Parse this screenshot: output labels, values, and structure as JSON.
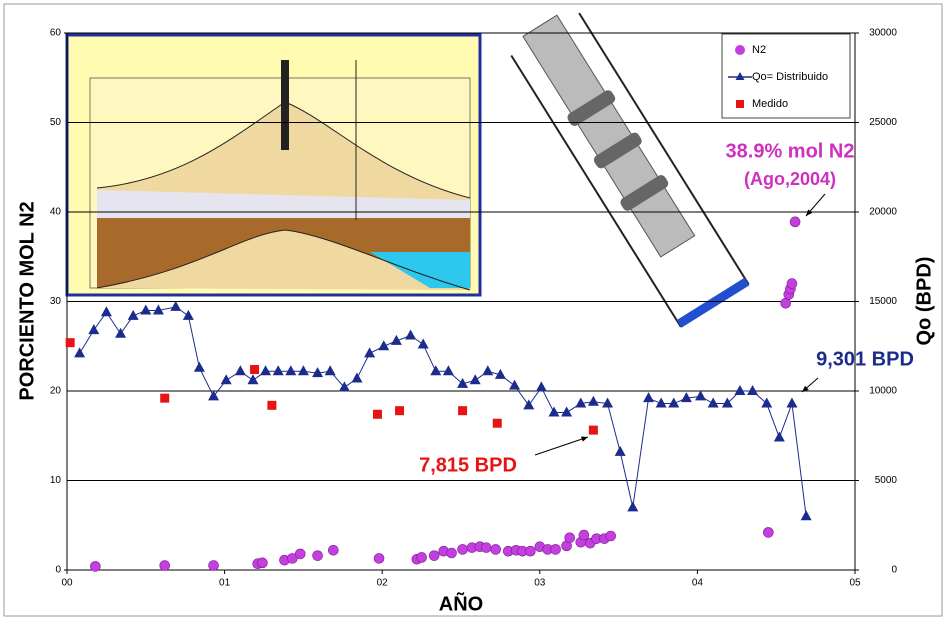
{
  "chart_data": {
    "type": "mixed",
    "xlabel": "AÑO",
    "ylabel": "PORCIENTO MOL N2",
    "y2label": "Qo (BPD)",
    "xlim": [
      0,
      5
    ],
    "xticks": [
      {
        "value": 0,
        "label": "00"
      },
      {
        "value": 1,
        "label": "01"
      },
      {
        "value": 2,
        "label": "02"
      },
      {
        "value": 3,
        "label": "03"
      },
      {
        "value": 4,
        "label": "04"
      },
      {
        "value": 5,
        "label": "05"
      }
    ],
    "ylim": [
      0,
      60
    ],
    "yticks": [
      0,
      10,
      20,
      30,
      40,
      50,
      60
    ],
    "y2lim": [
      0,
      30000
    ],
    "y2ticks": [
      0,
      5000,
      10000,
      15000,
      20000,
      25000,
      30000
    ],
    "grid": true,
    "legend": "upper right",
    "series": [
      {
        "name": "N2",
        "kind": "scatter",
        "marker": "circle",
        "color": "#c43ee0",
        "x": [
          0.18,
          0.62,
          0.93,
          1.21,
          1.24,
          1.38,
          1.43,
          1.48,
          1.59,
          1.69,
          1.98,
          2.22,
          2.25,
          2.33,
          2.39,
          2.44,
          2.51,
          2.57,
          2.62,
          2.66,
          2.72,
          2.8,
          2.85,
          2.89,
          2.94,
          3.0,
          3.05,
          3.1,
          3.17,
          3.19,
          3.26,
          3.28,
          3.32,
          3.36,
          3.41,
          3.45,
          4.45,
          4.56,
          4.58,
          4.59,
          4.6,
          4.62
        ],
        "values": [
          0.4,
          0.5,
          0.5,
          0.7,
          0.8,
          1.1,
          1.3,
          1.8,
          1.6,
          2.2,
          1.3,
          1.2,
          1.4,
          1.6,
          2.1,
          1.9,
          2.3,
          2.5,
          2.6,
          2.5,
          2.3,
          2.1,
          2.2,
          2.1,
          2.1,
          2.6,
          2.3,
          2.3,
          2.7,
          3.6,
          3.1,
          3.9,
          3.0,
          3.5,
          3.5,
          3.8,
          4.2,
          29.8,
          30.8,
          31.4,
          32.0,
          38.9
        ]
      },
      {
        "name": "Qo= Distribuido",
        "kind": "line",
        "marker": "triangle",
        "color": "#1c2c8c",
        "axis": "y2",
        "x": [
          0.08,
          0.17,
          0.25,
          0.34,
          0.42,
          0.5,
          0.58,
          0.69,
          0.77,
          0.84,
          0.93,
          1.01,
          1.1,
          1.18,
          1.26,
          1.34,
          1.42,
          1.5,
          1.59,
          1.67,
          1.76,
          1.84,
          1.92,
          2.01,
          2.09,
          2.18,
          2.26,
          2.34,
          2.42,
          2.51,
          2.59,
          2.67,
          2.75,
          2.84,
          2.93,
          3.01,
          3.09,
          3.17,
          3.26,
          3.34,
          3.43,
          3.51,
          3.59,
          3.69,
          3.77,
          3.85,
          3.93,
          4.02,
          4.1,
          4.19,
          4.27,
          4.35,
          4.44,
          4.52,
          4.6,
          4.69
        ],
        "values": [
          12100,
          13400,
          14400,
          13200,
          14200,
          14500,
          14500,
          14700,
          14200,
          11300,
          9700,
          10600,
          11100,
          10600,
          11100,
          11100,
          11100,
          11100,
          11000,
          11100,
          10200,
          10700,
          12100,
          12500,
          12800,
          13100,
          12600,
          11100,
          11100,
          10400,
          10600,
          11100,
          10900,
          10300,
          9200,
          10200,
          8800,
          8800,
          9300,
          9400,
          9300,
          6600,
          3500,
          9600,
          9300,
          9300,
          9600,
          9700,
          9300,
          9300,
          10000,
          10000,
          9300,
          7400,
          9301,
          3000
        ]
      },
      {
        "name": "Medido",
        "kind": "scatter",
        "marker": "square",
        "color": "#e81414",
        "axis": "y2",
        "x": [
          0.02,
          0.62,
          1.19,
          1.3,
          1.97,
          2.11,
          2.51,
          2.73,
          3.34
        ],
        "values": [
          12700,
          9600,
          11200,
          9200,
          8700,
          8900,
          8900,
          8200,
          7815
        ]
      }
    ],
    "annotations": [
      {
        "text": "38.9% mol N2",
        "color": "#d030c0"
      },
      {
        "text": "(Ago,2004)",
        "color": "#d030c0"
      },
      {
        "text": "9,301 BPD",
        "color": "#1c2c8c"
      },
      {
        "text": "7,815 BPD",
        "color": "#e81414"
      }
    ]
  }
}
